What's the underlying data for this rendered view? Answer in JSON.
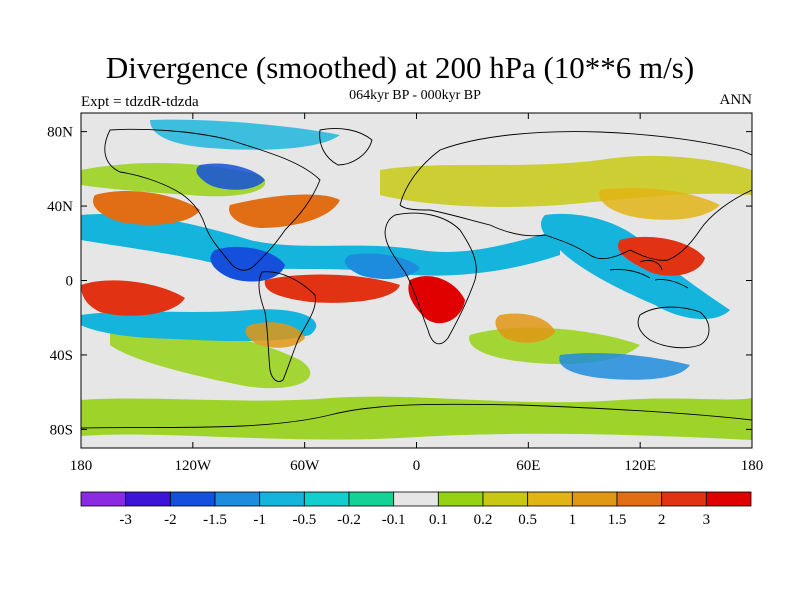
{
  "title": "Divergence (smoothed) at 200 hPa (10**6 m/s)",
  "left_string": "Expt = tdzdR-tdzda",
  "center_string": "064kyr BP - 000kyr BP",
  "right_string": "ANN",
  "axes": {
    "lat_labels": [
      "80N",
      "40N",
      "0",
      "40S",
      "80S"
    ],
    "lon_labels": [
      "180",
      "120W",
      "60W",
      "0",
      "60E",
      "120E",
      "180"
    ]
  },
  "colorbar": {
    "colors": [
      "#8a2be2",
      "#3c14d7",
      "#1450dc",
      "#1e8cdc",
      "#14b4dc",
      "#14cdcd",
      "#14d296",
      "#e6e6e6",
      "#96d214",
      "#c8c814",
      "#e1b414",
      "#e19614",
      "#e16e14",
      "#e13214",
      "#e10000"
    ],
    "labels": [
      "-3",
      "-2",
      "-1.5",
      "-1",
      "-0.5",
      "-0.2",
      "-0.1",
      "0.1",
      "0.2",
      "0.5",
      "1",
      "1.5",
      "2",
      "3"
    ]
  },
  "map_features": {
    "background_color": "#e6e6e6",
    "features": [
      {
        "name": "central-pacific-divergence",
        "color": "#e13214"
      },
      {
        "name": "south-america-divergence",
        "color": "#e13214"
      },
      {
        "name": "africa-divergence",
        "color": "#e10000"
      },
      {
        "name": "maritime-continent-divergence",
        "color": "#e13214"
      },
      {
        "name": "north-atlantic-divergence",
        "color": "#e16e14"
      },
      {
        "name": "north-pacific-divergence",
        "color": "#e16e14"
      },
      {
        "name": "east-pacific-convergence",
        "color": "#1450dc"
      },
      {
        "name": "atlantic-convergence",
        "color": "#1e8cdc"
      },
      {
        "name": "indian-ocean-convergence",
        "color": "#14b4dc"
      },
      {
        "name": "pacific-convergence-band",
        "color": "#14b4dc"
      },
      {
        "name": "tropical-atlantic-convergence",
        "color": "#14b4dc"
      },
      {
        "name": "southern-ocean-band",
        "color": "#96d214"
      }
    ]
  }
}
